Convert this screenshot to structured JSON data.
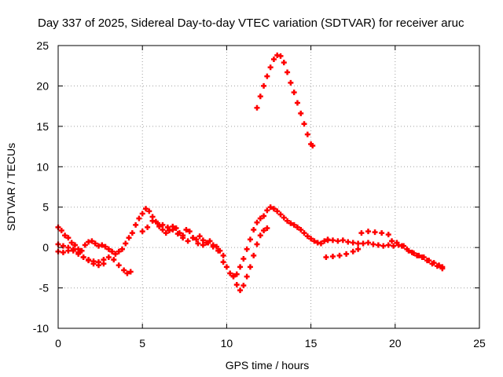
{
  "chart_data": {
    "type": "scatter",
    "title": "Day 337 of 2025, Sidereal Day-to-day VTEC variation (SDTVAR) for receiver aruc",
    "xlabel": "GPS time / hours",
    "ylabel": "SDTVAR / TECUs",
    "xlim": [
      0,
      25
    ],
    "ylim": [
      -10,
      25
    ],
    "xticks": [
      0,
      5,
      10,
      15,
      20,
      25
    ],
    "yticks": [
      -10,
      -5,
      0,
      5,
      10,
      15,
      20,
      25
    ],
    "grid": true,
    "marker": "+",
    "series": [
      {
        "name": "SDTVAR",
        "color": "#ff0000",
        "x": [
          0.0,
          0.2,
          0.4,
          0.6,
          0.8,
          1.0,
          1.2,
          1.4,
          1.6,
          1.8,
          2.0,
          2.2,
          2.4,
          2.6,
          2.8,
          3.0,
          3.2,
          3.4,
          3.6,
          3.8,
          4.0,
          4.2,
          0.0,
          0.3,
          0.6,
          0.9,
          1.2,
          1.5,
          1.8,
          2.1,
          2.4,
          2.7,
          3.0,
          3.3,
          3.6,
          3.9,
          4.1,
          4.3,
          0.0,
          0.3,
          0.6,
          0.9,
          1.2,
          1.5,
          1.8,
          2.1,
          2.4,
          2.7,
          4.4,
          4.6,
          4.8,
          5.0,
          5.2,
          5.4,
          5.6,
          5.8,
          6.0,
          6.2,
          6.4,
          6.6,
          6.8,
          7.0,
          7.2,
          7.4,
          7.6,
          7.8,
          8.0,
          8.2,
          8.4,
          8.6,
          8.8,
          9.0,
          9.2,
          9.4,
          9.6,
          9.8,
          5.0,
          5.3,
          5.6,
          5.9,
          6.2,
          6.5,
          6.8,
          7.1,
          7.4,
          7.7,
          8.0,
          8.3,
          8.6,
          8.9,
          9.2,
          9.5,
          9.8,
          10.0,
          10.2,
          10.4,
          10.6,
          10.8,
          11.0,
          11.2,
          11.4,
          11.6,
          11.8,
          12.0,
          12.2,
          12.4,
          12.6,
          12.8,
          13.0,
          13.2,
          13.4,
          13.6,
          13.8,
          14.0,
          14.2,
          14.4,
          14.6,
          14.8,
          15.0,
          15.2,
          15.4,
          15.6,
          15.8,
          16.0,
          10.4,
          10.6,
          10.8,
          11.0,
          11.2,
          11.4,
          11.6,
          11.8,
          12.0,
          12.2,
          12.4,
          16.0,
          16.3,
          16.6,
          16.9,
          17.2,
          17.5,
          17.8,
          18.1,
          18.4,
          18.7,
          19.0,
          19.3,
          19.6,
          19.9,
          20.2,
          20.5,
          20.8,
          21.1,
          21.4,
          21.7,
          22.0,
          22.3,
          22.6,
          22.8,
          15.9,
          16.3,
          16.7,
          17.1,
          17.5,
          17.8,
          18.0,
          18.4,
          18.8,
          19.2,
          19.6,
          19.8,
          20.1,
          20.4,
          20.7,
          21.0,
          21.3,
          21.6,
          21.9,
          22.2,
          22.5,
          22.8,
          11.8,
          12.0,
          12.2,
          12.4,
          12.6,
          12.8,
          13.0,
          13.2,
          13.4,
          13.6,
          13.8,
          14.0,
          14.2,
          14.4,
          14.6,
          14.8,
          15.0,
          15.1
        ],
        "y": [
          2.5,
          2.1,
          1.5,
          1.2,
          0.6,
          0.3,
          -0.2,
          -0.4,
          0.3,
          0.7,
          0.8,
          0.5,
          0.2,
          0.3,
          0.1,
          -0.2,
          -0.5,
          -0.8,
          -0.5,
          -0.2,
          0.5,
          1.2,
          0.4,
          0.2,
          0.0,
          -0.4,
          -0.8,
          -1.2,
          -1.5,
          -1.7,
          -1.8,
          -1.5,
          -1.2,
          -1.5,
          -2.2,
          -2.8,
          -3.2,
          -3.0,
          -0.5,
          -0.6,
          -0.4,
          -0.2,
          -0.6,
          -1.2,
          -1.6,
          -2.0,
          -2.2,
          -2.0,
          1.8,
          2.8,
          3.6,
          4.2,
          4.8,
          4.5,
          3.8,
          3.2,
          2.6,
          2.2,
          1.8,
          2.1,
          2.6,
          2.4,
          1.8,
          1.5,
          2.2,
          2.0,
          1.2,
          1.0,
          1.4,
          0.9,
          0.6,
          0.8,
          0.3,
          0.1,
          -0.4,
          -1.0,
          2.0,
          2.5,
          3.3,
          3.0,
          2.8,
          2.5,
          2.2,
          1.7,
          1.2,
          0.8,
          1.2,
          0.5,
          0.3,
          0.6,
          0.1,
          -0.4,
          -1.8,
          -2.4,
          -3.2,
          -3.6,
          -3.3,
          -2.4,
          -1.4,
          -0.2,
          1.0,
          2.2,
          3.1,
          3.6,
          3.9,
          4.6,
          5.0,
          4.8,
          4.5,
          4.1,
          3.7,
          3.3,
          3.0,
          2.8,
          2.5,
          2.2,
          1.8,
          1.4,
          1.1,
          0.8,
          0.6,
          0.5,
          0.8,
          0.9,
          -3.5,
          -4.6,
          -5.3,
          -4.7,
          -3.6,
          -2.4,
          -1.0,
          0.4,
          1.5,
          2.1,
          2.4,
          1.0,
          0.9,
          0.8,
          0.9,
          0.7,
          0.6,
          0.5,
          0.5,
          0.6,
          0.4,
          0.3,
          0.2,
          0.3,
          0.2,
          0.3,
          0.2,
          -0.4,
          -0.7,
          -1.0,
          -1.2,
          -1.6,
          -1.9,
          -2.2,
          -2.4,
          -1.2,
          -1.1,
          -1.0,
          -0.8,
          -0.5,
          -0.2,
          1.8,
          2.0,
          1.9,
          1.8,
          1.6,
          0.8,
          0.6,
          0.2,
          -0.2,
          -0.6,
          -1.0,
          -1.2,
          -1.6,
          -2.0,
          -2.3,
          -2.6,
          17.3,
          18.7,
          20.0,
          21.2,
          22.3,
          23.3,
          23.8,
          23.7,
          22.9,
          21.7,
          20.4,
          19.2,
          17.9,
          16.6,
          15.3,
          14.0,
          12.8,
          12.6
        ]
      }
    ]
  }
}
